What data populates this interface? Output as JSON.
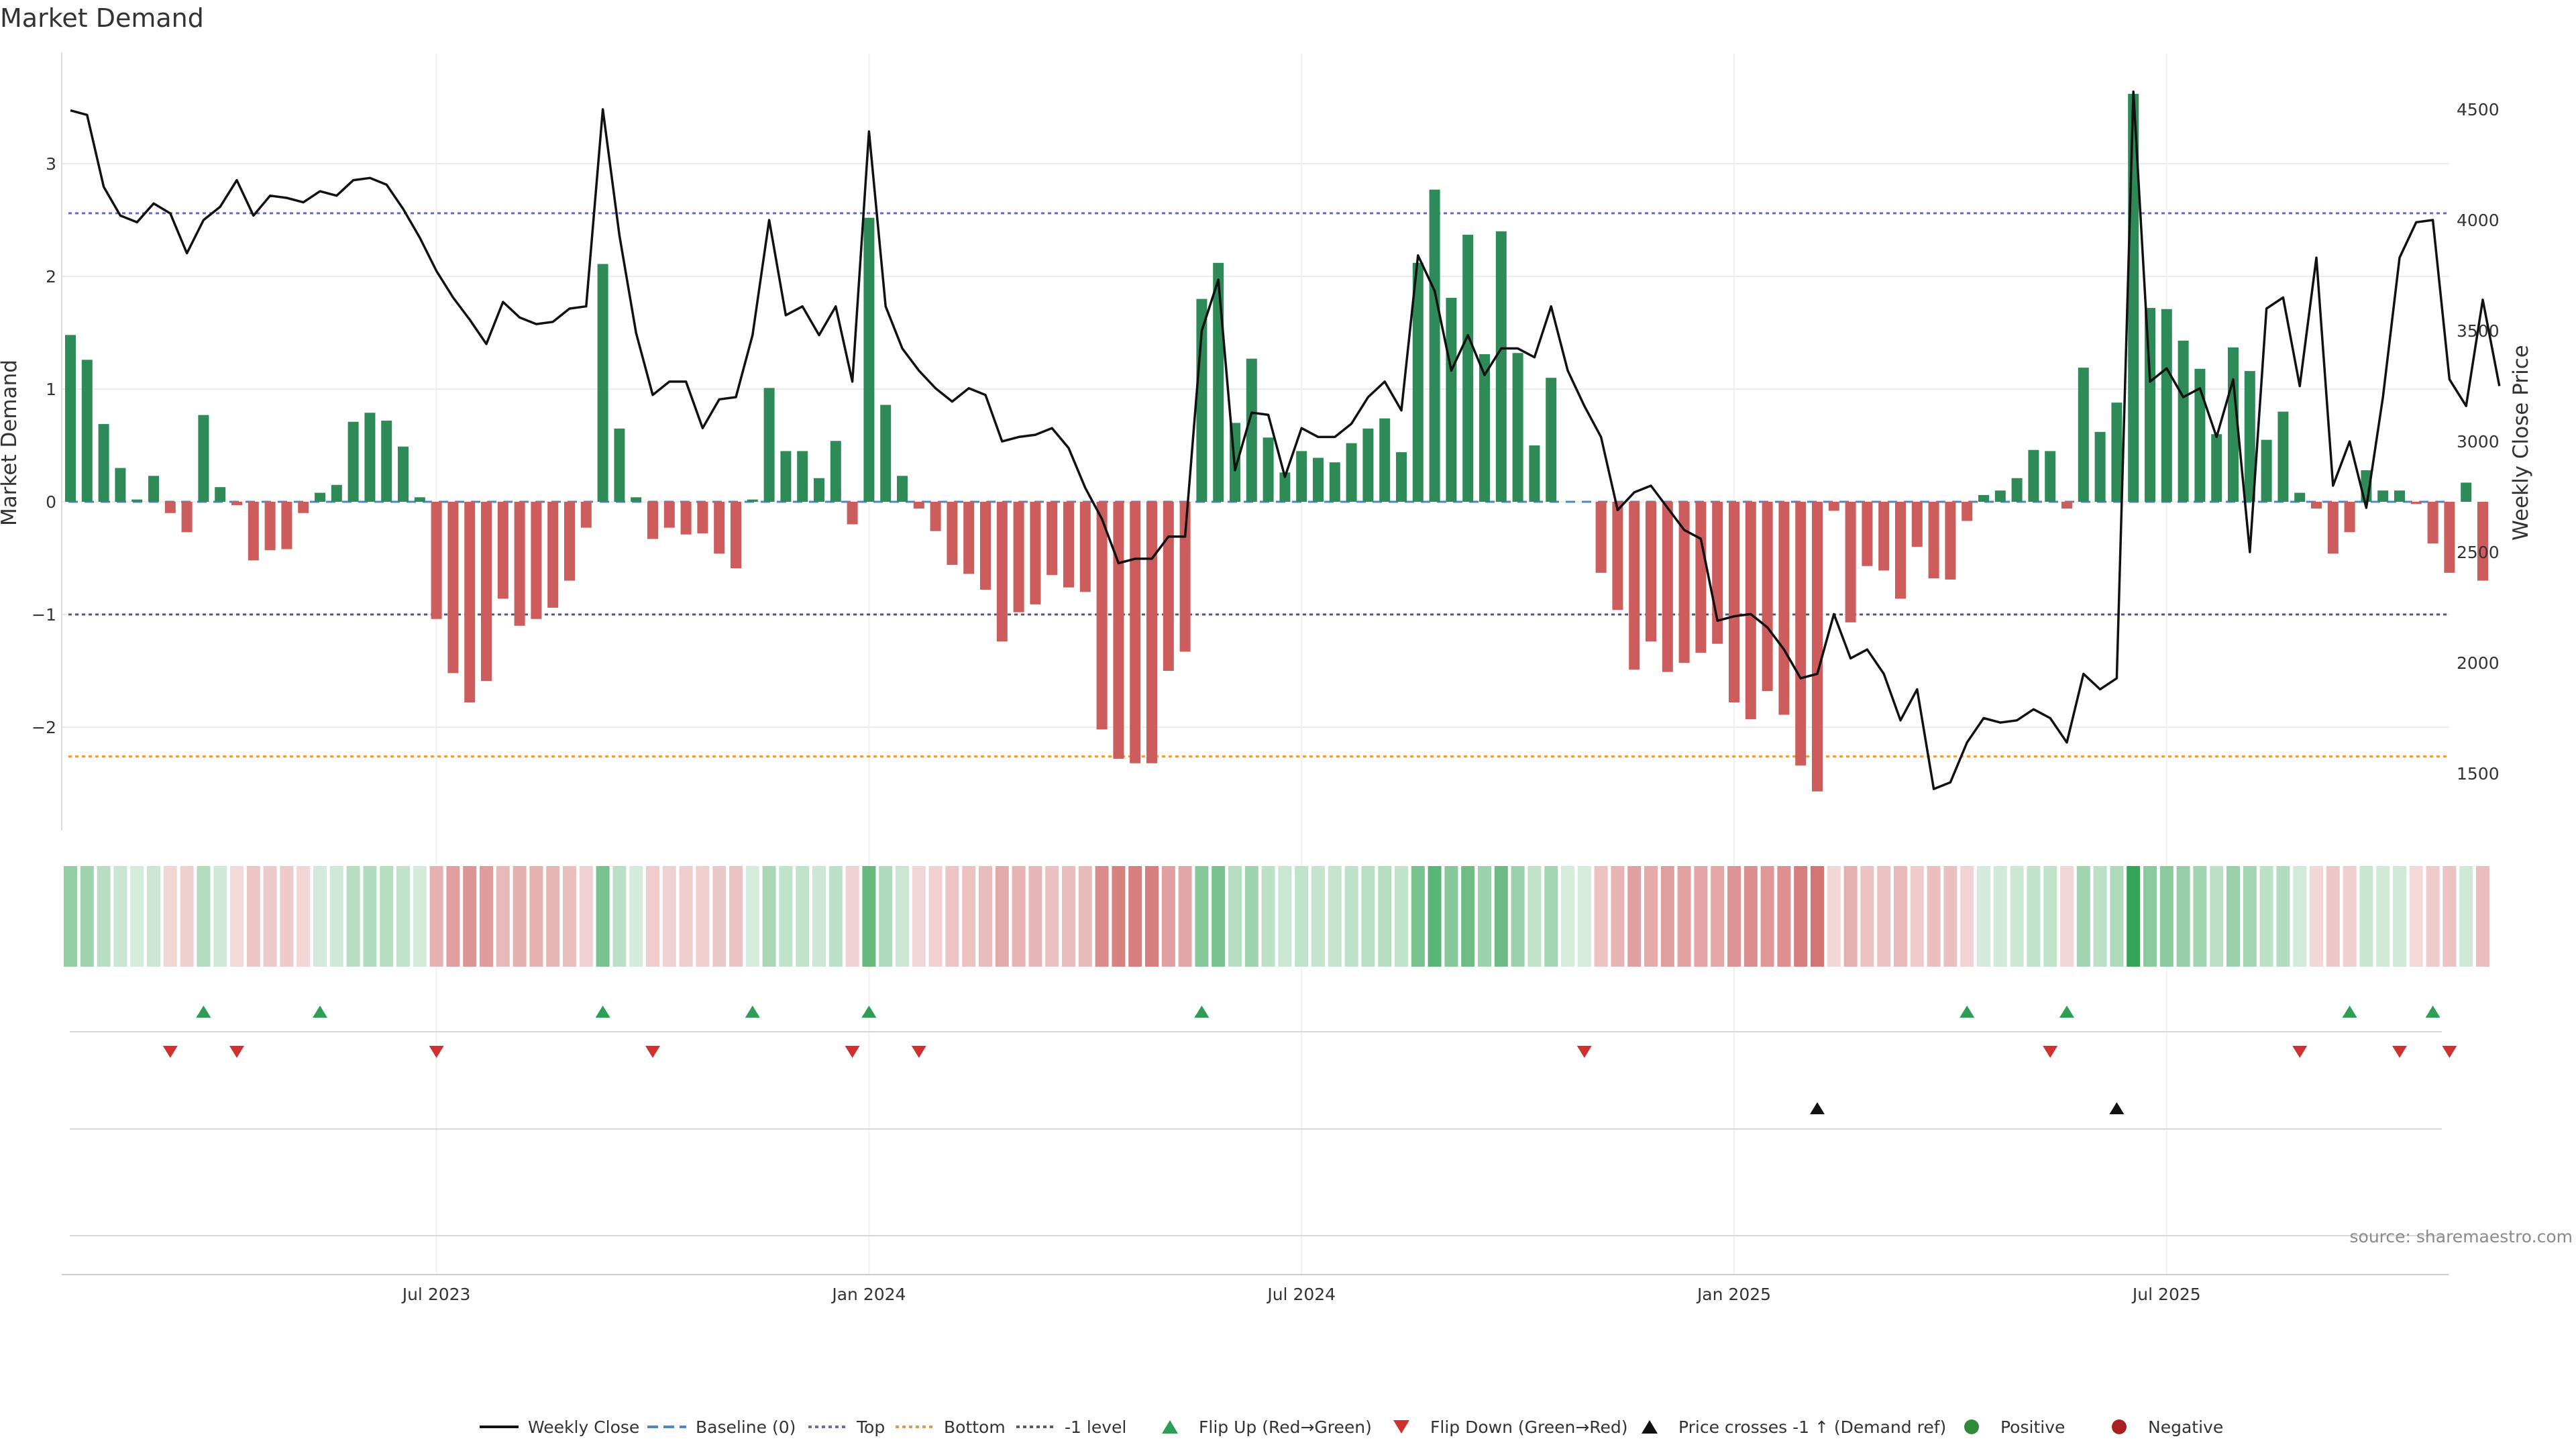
{
  "chart_data": {
    "type": "bar",
    "title": "Market Demand",
    "ylabel": "Market Demand",
    "y2label": "Weekly Close Price",
    "ylim": [
      -2.9,
      3.75
    ],
    "y2lim": [
      1220,
      4700
    ],
    "yticks": [
      -2,
      -1,
      0,
      1,
      2,
      3
    ],
    "ytick_labels": [
      "−2",
      "−1",
      "0",
      "1",
      "2",
      "3"
    ],
    "y2ticks": [
      1500,
      2000,
      2500,
      3000,
      3500,
      4000,
      4500
    ],
    "y2tick_labels": [
      "1500",
      "2000",
      "2500",
      "3000",
      "3500",
      "4000",
      "4500"
    ],
    "xticks": [
      {
        "label": "Jul 2023",
        "index": 22
      },
      {
        "label": "Jan 2024",
        "index": 48
      },
      {
        "label": "Jul 2024",
        "index": 74
      },
      {
        "label": "Jan 2025",
        "index": 100
      },
      {
        "label": "Jul 2025",
        "index": 126
      }
    ],
    "reference_lines": {
      "top": 2.56,
      "bottom": -2.26,
      "minus_one": -1.0,
      "baseline": 0
    },
    "demand": [
      1.48,
      1.26,
      0.69,
      0.3,
      0.02,
      0.23,
      -0.1,
      -0.27,
      0.77,
      0.13,
      -0.03,
      -0.52,
      -0.43,
      -0.42,
      -0.1,
      0.08,
      0.15,
      0.71,
      0.79,
      0.72,
      0.49,
      0.04,
      -1.04,
      -1.52,
      -1.78,
      -1.59,
      -0.86,
      -1.1,
      -1.04,
      -0.94,
      -0.7,
      -0.23,
      2.11,
      0.65,
      0.04,
      -0.33,
      -0.23,
      -0.29,
      -0.28,
      -0.46,
      -0.59,
      0.02,
      1.01,
      0.45,
      0.45,
      0.21,
      0.54,
      -0.2,
      2.52,
      0.86,
      0.23,
      -0.06,
      -0.26,
      -0.56,
      -0.64,
      -0.78,
      -1.24,
      -0.98,
      -0.91,
      -0.65,
      -0.76,
      -0.8,
      -2.02,
      -2.28,
      -2.32,
      -2.32,
      -1.5,
      -1.33,
      1.8,
      2.12,
      0.7,
      1.27,
      0.57,
      0.26,
      0.45,
      0.39,
      0.35,
      0.52,
      0.65,
      0.74,
      0.44,
      2.12,
      2.77,
      1.81,
      2.37,
      1.31,
      2.4,
      1.32,
      0.5,
      1.1,
      0,
      0,
      -0.63,
      -0.96,
      -1.49,
      -1.24,
      -1.51,
      -1.43,
      -1.34,
      -1.26,
      -1.78,
      -1.93,
      -1.68,
      -1.89,
      -2.34,
      -2.57,
      -0.08,
      -1.07,
      -0.57,
      -0.61,
      -0.86,
      -0.4,
      -0.68,
      -0.69,
      -0.17,
      0.06,
      0.1,
      0.21,
      0.46,
      0.45,
      -0.06,
      1.19,
      0.62,
      0.88,
      3.62,
      1.72,
      1.71,
      1.43,
      1.18,
      0.6,
      1.37,
      1.16,
      0.55,
      0.8,
      0.08,
      -0.06,
      -0.46,
      -0.27,
      0.28,
      0.1,
      0.1,
      -0.02,
      -0.37,
      -0.63,
      0.17,
      -0.7
    ],
    "price": [
      4495,
      4475,
      4150,
      4020,
      3990,
      4075,
      4030,
      3850,
      4000,
      4060,
      4180,
      4020,
      4110,
      4100,
      4080,
      4130,
      4110,
      4180,
      4190,
      4160,
      4050,
      3920,
      3770,
      3650,
      3550,
      3440,
      3630,
      3560,
      3530,
      3540,
      3600,
      3610,
      4500,
      3930,
      3490,
      3210,
      3270,
      3270,
      3060,
      3190,
      3200,
      3480,
      4000,
      3570,
      3610,
      3480,
      3610,
      3270,
      4400,
      3610,
      3420,
      3320,
      3240,
      3180,
      3240,
      3210,
      3000,
      3020,
      3030,
      3060,
      2970,
      2790,
      2650,
      2450,
      2470,
      2470,
      2570,
      2570,
      3500,
      3730,
      2870,
      3130,
      3120,
      2840,
      3060,
      3020,
      3020,
      3080,
      3200,
      3270,
      3140,
      3840,
      3680,
      3320,
      3480,
      3300,
      3420,
      3420,
      3380,
      3610,
      3320,
      3160,
      3020,
      2690,
      2770,
      2800,
      2700,
      2600,
      2560,
      2190,
      2210,
      2220,
      2160,
      2060,
      1930,
      1950,
      2220,
      2020,
      2060,
      1950,
      1740,
      1880,
      1430,
      1460,
      1640,
      1750,
      1730,
      1740,
      1790,
      1750,
      1640,
      1950,
      1880,
      1930,
      4580,
      3270,
      3330,
      3200,
      3240,
      3020,
      3280,
      2500,
      3600,
      3650,
      3250,
      3830,
      2800,
      3000,
      2700,
      3200,
      3830,
      3990,
      4000,
      3280,
      3160,
      3640,
      3250
    ],
    "flip_up_indices": [
      8,
      15,
      32,
      41,
      48,
      68,
      114,
      120,
      137,
      142
    ],
    "flip_down_indices": [
      6,
      10,
      22,
      35,
      47,
      51,
      91,
      119,
      134,
      140,
      143
    ],
    "price_cross_indices": [
      105,
      123
    ],
    "legend": [
      {
        "label": "Weekly Close",
        "marker": "solid-line",
        "color": "#111111"
      },
      {
        "label": "Baseline (0)",
        "marker": "dashed-line",
        "color": "#4a86c8"
      },
      {
        "label": "Top",
        "marker": "dotted-line",
        "color": "#6b6bb5"
      },
      {
        "label": "Bottom",
        "marker": "dotted-line",
        "color": "#e89a3c"
      },
      {
        "label": "-1 level",
        "marker": "dotted-line",
        "color": "#555577"
      },
      {
        "label": "Flip Up (Red→Green)",
        "marker": "triangle-up",
        "color": "#2e9e55"
      },
      {
        "label": "Flip Down (Green→Red)",
        "marker": "triangle-down",
        "color": "#d03030"
      },
      {
        "label": "Price crosses -1 ↑ (Demand ref)",
        "marker": "triangle-up",
        "color": "#111111"
      },
      {
        "label": "Positive",
        "marker": "circle",
        "color": "#2e8b3a"
      },
      {
        "label": "Negative",
        "marker": "circle",
        "color": "#a82020"
      }
    ],
    "source": "source: sharemaestro.com"
  },
  "colors": {
    "positive_bar": "#2e8b57",
    "negative_bar": "#cd5c5c",
    "price_line": "#111111",
    "top_line": "#6b6bb5",
    "bottom_line": "#e89a3c",
    "minus_one_line": "#555577",
    "baseline": "#4a86c8",
    "flip_up": "#2e9e55",
    "flip_down": "#d03030",
    "cross_marker": "#111111",
    "grid": "#ececec"
  }
}
